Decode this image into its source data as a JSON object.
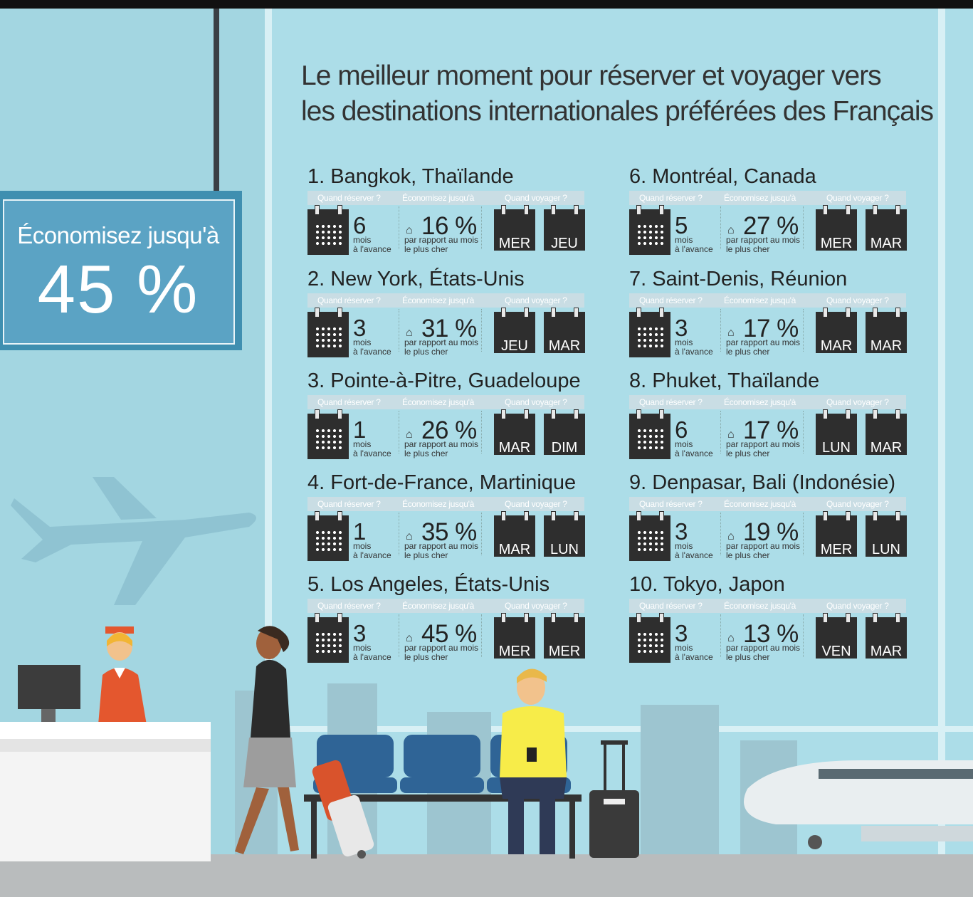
{
  "title_line1": "Le meilleur moment pour réserver et voyager vers",
  "title_line2": "les destinations internationales préférées des Français",
  "sign": {
    "line1": "Économisez jusqu'à",
    "line2": "45 %"
  },
  "headers": {
    "book": "Quand réserver ?",
    "save": "Économisez jusqu'à",
    "travel": "Quand voyager ?"
  },
  "labels": {
    "mois": "mois",
    "avance": "à l'avance",
    "par_rapport": "par rapport au mois",
    "plus_cher": "le plus cher"
  },
  "destinations": [
    {
      "name": "1. Bangkok, Thaïlande",
      "months": "6",
      "savings": "16 %",
      "day1": "MER",
      "day2": "JEU"
    },
    {
      "name": "2. New York, États-Unis",
      "months": "3",
      "savings": "31 %",
      "day1": "JEU",
      "day2": "MAR"
    },
    {
      "name": "3. Pointe-à-Pitre, Guadeloupe",
      "months": "1",
      "savings": "26 %",
      "day1": "MAR",
      "day2": "DIM"
    },
    {
      "name": "4. Fort-de-France, Martinique",
      "months": "1",
      "savings": "35 %",
      "day1": "MAR",
      "day2": "LUN"
    },
    {
      "name": "5. Los Angeles, États-Unis",
      "months": "3",
      "savings": "45 %",
      "day1": "MER",
      "day2": "MER"
    },
    {
      "name": "6. Montréal, Canada",
      "months": "5",
      "savings": "27 %",
      "day1": "MER",
      "day2": "MAR"
    },
    {
      "name": "7. Saint-Denis, Réunion",
      "months": "3",
      "savings": "17 %",
      "day1": "MAR",
      "day2": "MAR"
    },
    {
      "name": "8. Phuket, Thaïlande",
      "months": "6",
      "savings": "17 %",
      "day1": "LUN",
      "day2": "MAR"
    },
    {
      "name": "9. Denpasar, Bali (Indonésie)",
      "months": "3",
      "savings": "19 %",
      "day1": "MER",
      "day2": "LUN"
    },
    {
      "name": "10. Tokyo, Japon",
      "months": "3",
      "savings": "13 %",
      "day1": "VEN",
      "day2": "MAR"
    }
  ]
}
